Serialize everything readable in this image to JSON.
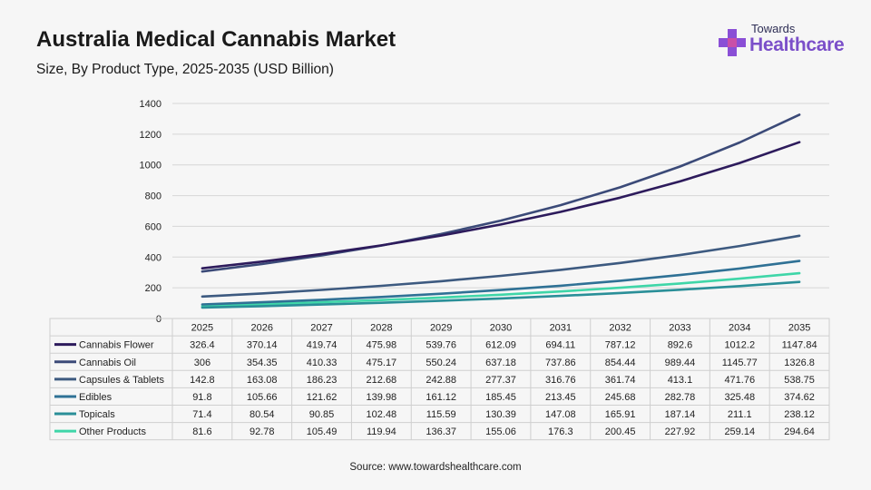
{
  "header": {
    "title": "Australia Medical Cannabis Market",
    "subtitle": "Size, By Product Type, 2025-2035 (USD Billion)"
  },
  "logo": {
    "line1": "Towards",
    "line2": "Healthcare"
  },
  "footer": {
    "source": "Source: www.towardshealthcare.com"
  },
  "chart_data": {
    "type": "line",
    "title": "Australia Medical Cannabis Market",
    "subtitle": "Size, By Product Type, 2025-2035 (USD Billion)",
    "x": [
      "2025",
      "2026",
      "2027",
      "2028",
      "2029",
      "2030",
      "2031",
      "2032",
      "2033",
      "2034",
      "2035"
    ],
    "ylim": [
      0,
      1400
    ],
    "yticks": [
      0,
      200,
      400,
      600,
      800,
      1000,
      1200,
      1400
    ],
    "grid": true,
    "legend": "data-table-below",
    "series": [
      {
        "name": "Cannabis Flower",
        "color": "#2d1b5c",
        "values": [
          326.4,
          370.14,
          419.74,
          475.98,
          539.76,
          612.09,
          694.11,
          787.12,
          892.6,
          1012.2,
          1147.84
        ]
      },
      {
        "name": "Cannabis Oil",
        "color": "#3b4a78",
        "values": [
          306,
          354.35,
          410.33,
          475.17,
          550.24,
          637.18,
          737.86,
          854.44,
          989.44,
          1145.77,
          1326.8
        ]
      },
      {
        "name": "Capsules & Tablets",
        "color": "#3d5a80",
        "values": [
          142.8,
          163.08,
          186.23,
          212.68,
          242.88,
          277.37,
          316.76,
          361.74,
          413.1,
          471.76,
          538.75
        ]
      },
      {
        "name": "Edibles",
        "color": "#2f7195",
        "values": [
          91.8,
          105.66,
          121.62,
          139.98,
          161.12,
          185.45,
          213.45,
          245.68,
          282.78,
          325.48,
          374.62
        ]
      },
      {
        "name": "Topicals",
        "color": "#2a8f98",
        "values": [
          71.4,
          80.54,
          90.85,
          102.48,
          115.59,
          130.39,
          147.08,
          165.91,
          187.14,
          211.1,
          238.12
        ]
      },
      {
        "name": "Other Products",
        "color": "#3fd6a8",
        "values": [
          81.6,
          92.78,
          105.49,
          119.94,
          136.37,
          155.06,
          176.3,
          200.45,
          227.92,
          259.14,
          294.64
        ]
      }
    ]
  }
}
